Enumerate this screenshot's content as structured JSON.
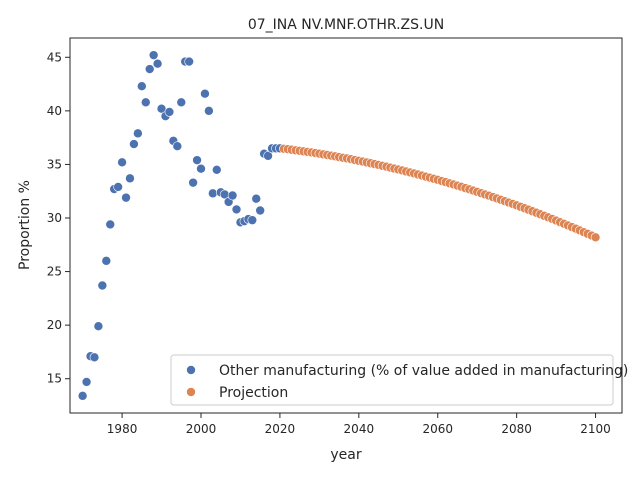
{
  "chart_data": {
    "type": "scatter",
    "title": "07_INA NV.MNF.OTHR.ZS.UN",
    "xlabel": "year",
    "ylabel": "Proportion %",
    "xlim": [
      1966.8,
      2106.7
    ],
    "ylim": [
      11.8,
      46.8
    ],
    "xticks": [
      1980,
      2000,
      2020,
      2040,
      2060,
      2080,
      2100
    ],
    "yticks": [
      15,
      20,
      25,
      30,
      35,
      40,
      45
    ],
    "grid": false,
    "legend_position": "lower-right",
    "series": [
      {
        "name": "Other manufacturing (% of value added in manufacturing)",
        "color": "#4c72b0",
        "points": [
          [
            1970,
            13.4
          ],
          [
            1971,
            14.7
          ],
          [
            1972,
            17.1
          ],
          [
            1973,
            17.0
          ],
          [
            1974,
            19.9
          ],
          [
            1975,
            23.7
          ],
          [
            1976,
            26.0
          ],
          [
            1977,
            29.4
          ],
          [
            1978,
            32.7
          ],
          [
            1979,
            32.9
          ],
          [
            1980,
            35.2
          ],
          [
            1981,
            31.9
          ],
          [
            1982,
            33.7
          ],
          [
            1983,
            36.9
          ],
          [
            1984,
            37.9
          ],
          [
            1985,
            42.3
          ],
          [
            1986,
            40.8
          ],
          [
            1987,
            43.9
          ],
          [
            1988,
            45.2
          ],
          [
            1989,
            44.4
          ],
          [
            1990,
            40.2
          ],
          [
            1991,
            39.5
          ],
          [
            1992,
            39.9
          ],
          [
            1993,
            37.2
          ],
          [
            1994,
            36.7
          ],
          [
            1995,
            40.8
          ],
          [
            1996,
            44.6
          ],
          [
            1997,
            44.6
          ],
          [
            1998,
            33.3
          ],
          [
            1999,
            35.4
          ],
          [
            2000,
            34.6
          ],
          [
            2001,
            41.6
          ],
          [
            2002,
            40.0
          ],
          [
            2003,
            32.3
          ],
          [
            2004,
            34.5
          ],
          [
            2005,
            32.4
          ],
          [
            2006,
            32.2
          ],
          [
            2007,
            31.5
          ],
          [
            2008,
            32.1
          ],
          [
            2009,
            30.8
          ],
          [
            2010,
            29.6
          ],
          [
            2011,
            29.7
          ],
          [
            2012,
            29.9
          ],
          [
            2013,
            29.8
          ],
          [
            2014,
            31.8
          ],
          [
            2015,
            30.7
          ],
          [
            2016,
            36.0
          ],
          [
            2017,
            35.8
          ],
          [
            2018,
            36.5
          ],
          [
            2019,
            36.5
          ],
          [
            2020,
            36.5
          ]
        ]
      },
      {
        "name": "Projection",
        "color": "#dd8452",
        "start_year": 2021,
        "values": [
          36.46,
          36.42,
          36.37,
          36.32,
          36.27,
          36.22,
          36.17,
          36.12,
          36.06,
          36.0,
          35.94,
          35.88,
          35.82,
          35.76,
          35.69,
          35.62,
          35.56,
          35.49,
          35.41,
          35.34,
          35.27,
          35.19,
          35.11,
          35.03,
          34.95,
          34.87,
          34.79,
          34.7,
          34.61,
          34.53,
          34.44,
          34.34,
          34.25,
          34.16,
          34.06,
          33.96,
          33.86,
          33.76,
          33.66,
          33.56,
          33.45,
          33.35,
          33.24,
          33.13,
          33.02,
          32.91,
          32.79,
          32.68,
          32.56,
          32.44,
          32.32,
          32.2,
          32.08,
          31.95,
          31.83,
          31.7,
          31.57,
          31.44,
          31.31,
          31.18,
          31.04,
          30.91,
          30.77,
          30.63,
          30.49,
          30.35,
          30.2,
          30.06,
          29.91,
          29.76,
          29.61,
          29.46,
          29.31,
          29.15,
          29.0,
          28.84,
          28.68,
          28.52,
          28.36,
          28.2
        ]
      }
    ]
  }
}
